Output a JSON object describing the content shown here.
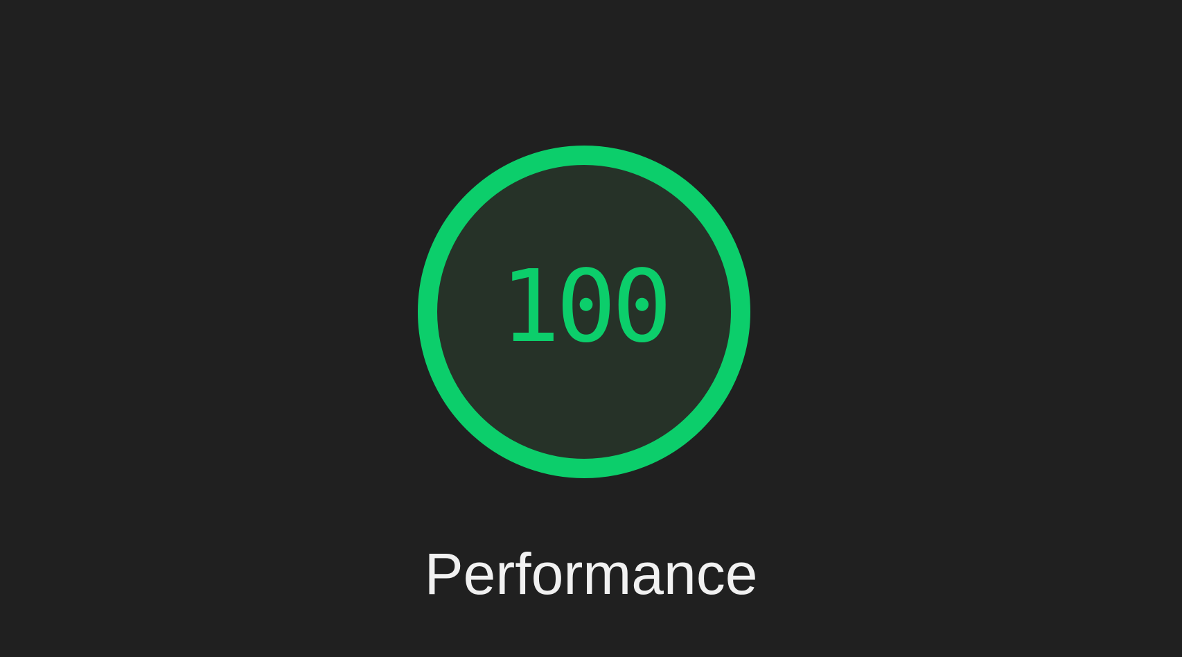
{
  "gauge": {
    "score": "100",
    "score_value": 100,
    "max": 100,
    "category": "Performance",
    "status": "pass"
  },
  "colors": {
    "background": "#202020",
    "ring": "#0cce6b",
    "ring_fill": "#263228",
    "score_text": "#0cce6b",
    "label_text": "#f1f1f1"
  }
}
